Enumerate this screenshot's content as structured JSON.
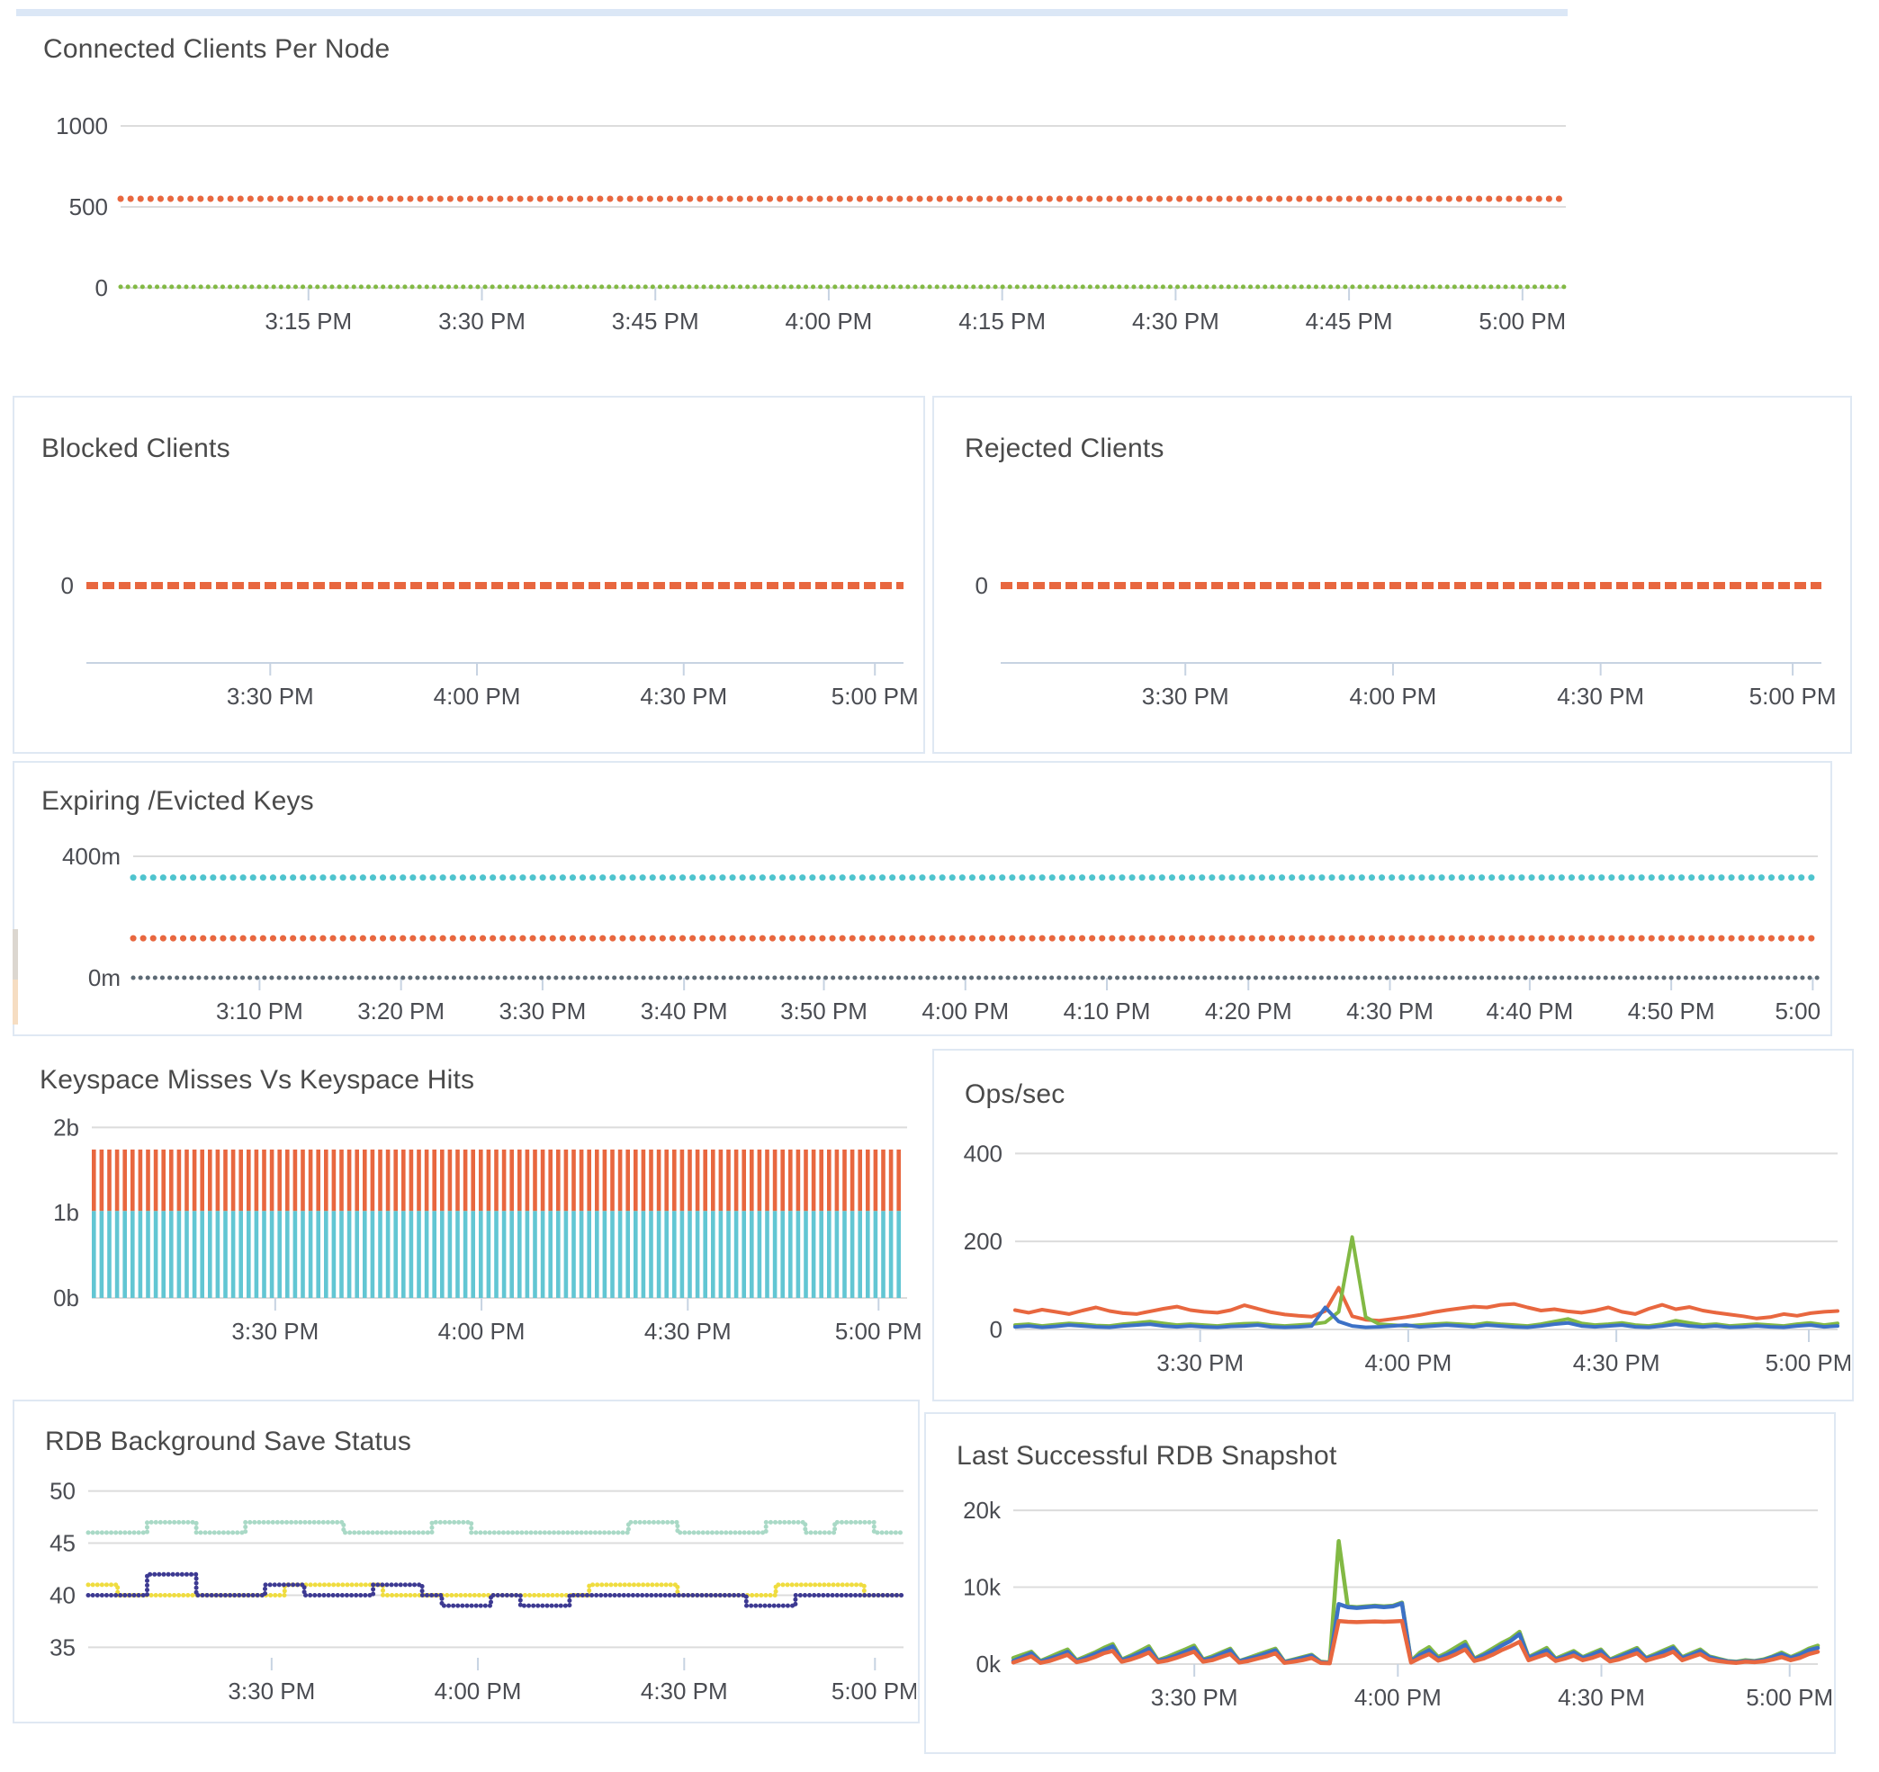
{
  "page": {
    "background": "#ffffff",
    "top_strip_color": "#dbe7f6",
    "panel_border_color": "#dfe8f3",
    "title_color": "#4a4a4a",
    "axis_text_color": "#4a4c52",
    "grid_color": "#dcdcdc",
    "axis_line_color": "#c7d3e2"
  },
  "chart_data": [
    {
      "id": "connected-clients",
      "type": "line",
      "title": "Connected Clients Per Node",
      "ylim": [
        0,
        1000
      ],
      "ygrid": [
        {
          "v": 1000,
          "label": "1000"
        },
        {
          "v": 500,
          "label": "500"
        },
        {
          "v": 0,
          "label": "0"
        }
      ],
      "xticks": [
        {
          "t": 0.13,
          "label": "3:15 PM"
        },
        {
          "t": 0.25,
          "label": "3:30 PM"
        },
        {
          "t": 0.37,
          "label": "3:45 PM"
        },
        {
          "t": 0.49,
          "label": "4:00 PM"
        },
        {
          "t": 0.61,
          "label": "4:15 PM"
        },
        {
          "t": 0.73,
          "label": "4:30 PM"
        },
        {
          "t": 0.85,
          "label": "4:45 PM"
        },
        {
          "t": 0.97,
          "label": "5:00 PM"
        }
      ],
      "series": [
        {
          "name": "connected-clients-primary",
          "color": "#e8673f",
          "style": "dots",
          "constant": 550
        },
        {
          "name": "connected-clients-secondary",
          "color": "#82b944",
          "style": "dots-sm",
          "constant": 6
        }
      ]
    },
    {
      "id": "blocked-clients",
      "type": "line",
      "title": "Blocked Clients",
      "ylim": [
        -100,
        150
      ],
      "axisline": true,
      "ygrid": [
        {
          "v": 0,
          "label": "0",
          "line": false
        }
      ],
      "xticks": [
        {
          "t": 0.225,
          "label": "3:30 PM"
        },
        {
          "t": 0.478,
          "label": "4:00 PM"
        },
        {
          "t": 0.731,
          "label": "4:30 PM"
        },
        {
          "t": 0.965,
          "label": "5:00 PM"
        }
      ],
      "series": [
        {
          "name": "blocked-clients",
          "color": "#e8673f",
          "style": "dash",
          "constant": 0
        }
      ]
    },
    {
      "id": "rejected-clients",
      "type": "line",
      "title": "Rejected Clients",
      "ylim": [
        -100,
        150
      ],
      "axisline": true,
      "ygrid": [
        {
          "v": 0,
          "label": "0",
          "line": false
        }
      ],
      "xticks": [
        {
          "t": 0.225,
          "label": "3:30 PM"
        },
        {
          "t": 0.478,
          "label": "4:00 PM"
        },
        {
          "t": 0.731,
          "label": "4:30 PM"
        },
        {
          "t": 0.965,
          "label": "5:00 PM"
        }
      ],
      "series": [
        {
          "name": "rejected-clients",
          "color": "#e8673f",
          "style": "dash",
          "constant": 0
        }
      ]
    },
    {
      "id": "expiring-evicted-keys",
      "type": "line",
      "title": "Expiring /Evicted Keys",
      "unit": "m",
      "ylim": [
        0,
        400
      ],
      "ygrid": [
        {
          "v": 400,
          "label": "400m"
        },
        {
          "v": 0,
          "label": "0m",
          "line": false
        }
      ],
      "xticks": [
        {
          "t": 0.075,
          "label": "3:10 PM"
        },
        {
          "t": 0.159,
          "label": "3:20 PM"
        },
        {
          "t": 0.243,
          "label": "3:30 PM"
        },
        {
          "t": 0.327,
          "label": "3:40 PM"
        },
        {
          "t": 0.41,
          "label": "3:50 PM"
        },
        {
          "t": 0.494,
          "label": "4:00 PM"
        },
        {
          "t": 0.578,
          "label": "4:10 PM"
        },
        {
          "t": 0.662,
          "label": "4:20 PM"
        },
        {
          "t": 0.746,
          "label": "4:30 PM"
        },
        {
          "t": 0.829,
          "label": "4:40 PM"
        },
        {
          "t": 0.913,
          "label": "4:50 PM"
        },
        {
          "t": 0.997,
          "label": "5:00 …"
        }
      ],
      "series": [
        {
          "name": "expiring-keys",
          "color": "#4fc4ce",
          "style": "dots",
          "constant": 330
        },
        {
          "name": "evicted-keys",
          "color": "#e8673f",
          "style": "dots",
          "constant": 130
        },
        {
          "name": "keys-baseline",
          "color": "#5d6a75",
          "style": "dots-sm",
          "constant": 0
        }
      ]
    },
    {
      "id": "keyspace-misses-vs-hits",
      "type": "bar",
      "title": "Keyspace Misses Vs Keyspace Hits",
      "unit": "b",
      "ylim": [
        0,
        2.12
      ],
      "ygrid": [
        {
          "v": 2,
          "label": "2b"
        },
        {
          "v": 1,
          "label": "1b",
          "line": false
        },
        {
          "v": 0,
          "label": "0b"
        }
      ],
      "xticks": [
        {
          "t": 0.225,
          "label": "3:30 PM"
        },
        {
          "t": 0.478,
          "label": "4:00 PM"
        },
        {
          "t": 0.731,
          "label": "4:30 PM"
        },
        {
          "t": 0.965,
          "label": "5:00 PM"
        }
      ],
      "series": [
        {
          "name": "keyspace-misses",
          "color": "#e8673f",
          "style": "vbars",
          "stack_base": 1.02,
          "stack_top": 1.74
        },
        {
          "name": "keyspace-hits",
          "color": "#62c6d3",
          "style": "vbars",
          "stack_base": 0,
          "stack_top": 1.02
        }
      ]
    },
    {
      "id": "ops-per-sec",
      "type": "line",
      "title": "Ops/sec",
      "ylim": [
        0,
        460
      ],
      "ygrid": [
        {
          "v": 400,
          "label": "400"
        },
        {
          "v": 200,
          "label": "200"
        },
        {
          "v": 0,
          "label": "0"
        }
      ],
      "xticks": [
        {
          "t": 0.225,
          "label": "3:30 PM"
        },
        {
          "t": 0.478,
          "label": "4:00 PM"
        },
        {
          "t": 0.731,
          "label": "4:30 PM"
        },
        {
          "t": 0.965,
          "label": "5:00 PM"
        }
      ],
      "series": [
        {
          "name": "ops-node-1",
          "color": "#e8673f",
          "style": "line",
          "values": [
            44,
            38,
            45,
            40,
            35,
            43,
            50,
            42,
            37,
            35,
            41,
            47,
            52,
            44,
            40,
            38,
            44,
            55,
            47,
            39,
            34,
            31,
            29,
            42,
            95,
            30,
            22,
            20,
            24,
            28,
            33,
            39,
            44,
            48,
            52,
            50,
            56,
            58,
            50,
            43,
            46,
            41,
            38,
            43,
            50,
            40,
            35,
            47,
            56,
            46,
            51,
            43,
            38,
            34,
            30,
            25,
            28,
            35,
            31,
            37,
            40,
            42
          ]
        },
        {
          "name": "ops-node-2",
          "color": "#82b944",
          "style": "line",
          "values": [
            10,
            12,
            8,
            11,
            14,
            12,
            9,
            8,
            12,
            15,
            18,
            14,
            10,
            12,
            10,
            8,
            11,
            13,
            14,
            10,
            8,
            10,
            12,
            16,
            40,
            210,
            28,
            12,
            10,
            8,
            10,
            12,
            14,
            12,
            10,
            15,
            12,
            10,
            8,
            12,
            18,
            24,
            14,
            10,
            12,
            15,
            10,
            8,
            12,
            20,
            15,
            10,
            12,
            8,
            10,
            12,
            10,
            8,
            12,
            15,
            10,
            14
          ]
        },
        {
          "name": "ops-node-3",
          "color": "#3c71c6",
          "style": "line",
          "values": [
            6,
            8,
            5,
            7,
            10,
            8,
            6,
            5,
            8,
            10,
            12,
            8,
            6,
            8,
            6,
            5,
            7,
            8,
            10,
            6,
            5,
            6,
            8,
            50,
            18,
            8,
            5,
            6,
            8,
            10,
            6,
            8,
            10,
            8,
            6,
            10,
            8,
            6,
            5,
            8,
            12,
            15,
            8,
            6,
            8,
            10,
            6,
            5,
            8,
            12,
            8,
            6,
            8,
            5,
            6,
            8,
            6,
            5,
            8,
            10,
            6,
            8
          ]
        }
      ]
    },
    {
      "id": "rdb-background-save-status",
      "type": "line",
      "title": "RDB Background Save Status",
      "ylim": [
        34,
        51
      ],
      "ygrid": [
        {
          "v": 50,
          "label": "50"
        },
        {
          "v": 45,
          "label": "45"
        },
        {
          "v": 40,
          "label": "40"
        },
        {
          "v": 35,
          "label": "35"
        }
      ],
      "xticks": [
        {
          "t": 0.225,
          "label": "3:30 PM"
        },
        {
          "t": 0.478,
          "label": "4:00 PM"
        },
        {
          "t": 0.731,
          "label": "4:30 PM"
        },
        {
          "t": 0.965,
          "label": "5:00 PM"
        }
      ],
      "series": [
        {
          "name": "rdb-status-node-1",
          "color": "#a9d9c6",
          "style": "step",
          "segments": [
            [
              46,
              6
            ],
            [
              47,
              5
            ],
            [
              46,
              5
            ],
            [
              47,
              10
            ],
            [
              46,
              9
            ],
            [
              47,
              4
            ],
            [
              46,
              16
            ],
            [
              47,
              5
            ],
            [
              46,
              9
            ],
            [
              47,
              4
            ],
            [
              46,
              3
            ],
            [
              47,
              4
            ],
            [
              46,
              4
            ]
          ]
        },
        {
          "name": "rdb-status-node-2",
          "color": "#efdc3f",
          "style": "step",
          "segments": [
            [
              41,
              3
            ],
            [
              40,
              17
            ],
            [
              41,
              10
            ],
            [
              40,
              21
            ],
            [
              41,
              9
            ],
            [
              40,
              10
            ],
            [
              41,
              9
            ],
            [
              40,
              5
            ]
          ]
        },
        {
          "name": "rdb-status-node-3",
          "color": "#3d3a92",
          "style": "step",
          "segments": [
            [
              40,
              6
            ],
            [
              42,
              5
            ],
            [
              40,
              7
            ],
            [
              41,
              4
            ],
            [
              40,
              7
            ],
            [
              41,
              5
            ],
            [
              40,
              2
            ],
            [
              39,
              5
            ],
            [
              40,
              3
            ],
            [
              39,
              5
            ],
            [
              40,
              18
            ],
            [
              39,
              5
            ],
            [
              40,
              12
            ]
          ]
        }
      ]
    },
    {
      "id": "last-successful-rdb-snapshot",
      "type": "line",
      "title": "Last Successful RDB Snapshot",
      "unit": "k",
      "ylim": [
        0,
        22000
      ],
      "ygrid": [
        {
          "v": 20000,
          "label": "20k"
        },
        {
          "v": 10000,
          "label": "10k"
        },
        {
          "v": 0,
          "label": "0k"
        }
      ],
      "xticks": [
        {
          "t": 0.225,
          "label": "3:30 PM"
        },
        {
          "t": 0.478,
          "label": "4:00 PM"
        },
        {
          "t": 0.731,
          "label": "4:30 PM"
        },
        {
          "t": 0.965,
          "label": "5:00 PM"
        }
      ],
      "series": [
        {
          "name": "snapshot-node-2",
          "color": "#82b944",
          "style": "line4",
          "values": [
            800,
            1200,
            1600,
            400,
            900,
            1400,
            1900,
            500,
            1000,
            1500,
            2100,
            2600,
            600,
            1100,
            1700,
            2300,
            500,
            900,
            1400,
            1900,
            2400,
            600,
            1000,
            1500,
            2000,
            400,
            800,
            1200,
            1600,
            2000,
            300,
            600,
            900,
            1200,
            300,
            200,
            16000,
            7500,
            7400,
            7500,
            7600,
            7500,
            7600,
            8000,
            400,
            1500,
            2200,
            900,
            1500,
            2200,
            2900,
            700,
            1300,
            2000,
            2700,
            3300,
            4200,
            900,
            1500,
            2100,
            700,
            1200,
            1700,
            900,
            1400,
            1900,
            600,
            1100,
            1600,
            2100,
            800,
            1300,
            1800,
            2300,
            900,
            1400,
            1900,
            1000,
            700,
            400,
            300,
            500,
            400,
            600,
            1000,
            1500,
            900,
            1400,
            2000,
            2400
          ]
        },
        {
          "name": "snapshot-node-3",
          "color": "#3c71c6",
          "style": "line4",
          "values": [
            400,
            900,
            1400,
            300,
            700,
            1100,
            1600,
            400,
            800,
            1300,
            1800,
            2300,
            500,
            900,
            1400,
            2000,
            400,
            700,
            1100,
            1600,
            2100,
            500,
            800,
            1300,
            1800,
            350,
            700,
            1000,
            1400,
            1800,
            250,
            500,
            800,
            1100,
            250,
            150,
            7800,
            7400,
            7300,
            7400,
            7500,
            7400,
            7500,
            7900,
            300,
            1200,
            1800,
            700,
            1200,
            1800,
            2500,
            600,
            1100,
            1700,
            2400,
            3000,
            3900,
            800,
            1300,
            1800,
            600,
            1000,
            1500,
            800,
            1200,
            1700,
            500,
            900,
            1400,
            1900,
            700,
            1100,
            1600,
            2100,
            800,
            1200,
            1700,
            900,
            600,
            350,
            250,
            400,
            350,
            500,
            900,
            1300,
            800,
            1200,
            1800,
            2100
          ]
        },
        {
          "name": "snapshot-node-1",
          "color": "#e8673f",
          "style": "line4",
          "values": [
            200,
            600,
            1000,
            150,
            400,
            800,
            1200,
            250,
            500,
            900,
            1400,
            1700,
            300,
            600,
            1000,
            1500,
            250,
            450,
            800,
            1200,
            1600,
            300,
            500,
            900,
            1300,
            200,
            400,
            700,
            1000,
            1400,
            150,
            300,
            500,
            800,
            150,
            100,
            5600,
            5500,
            5450,
            5500,
            5550,
            5500,
            5550,
            5600,
            200,
            800,
            1300,
            450,
            800,
            1300,
            1900,
            400,
            700,
            1200,
            1800,
            2300,
            2900,
            500,
            900,
            1300,
            400,
            700,
            1100,
            500,
            800,
            1200,
            350,
            600,
            1000,
            1400,
            450,
            800,
            1100,
            1600,
            500,
            900,
            1300,
            600,
            400,
            250,
            150,
            300,
            250,
            350,
            600,
            900,
            500,
            800,
            1300,
            1600
          ]
        }
      ]
    }
  ]
}
